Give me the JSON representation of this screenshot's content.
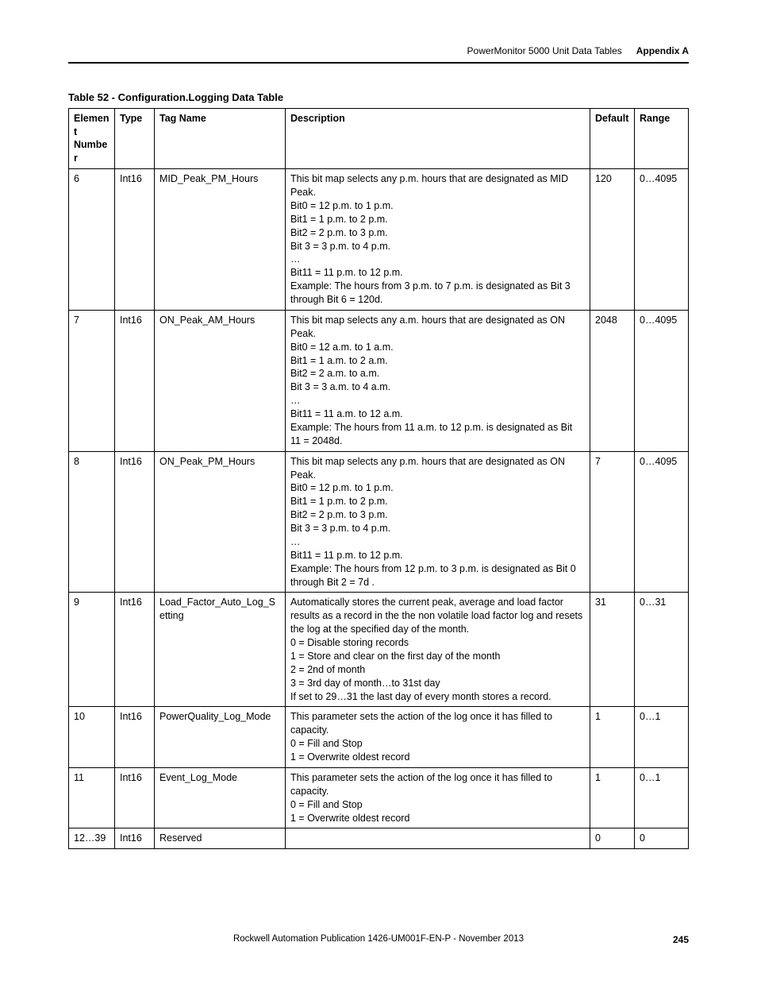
{
  "header": {
    "chapter": "PowerMonitor 5000 Unit Data Tables",
    "appendix": "Appendix A"
  },
  "caption": "Table 52 - Configuration.Logging Data Table",
  "columns": {
    "elem": "Element Number",
    "type": "Type",
    "tag": "Tag Name",
    "desc": "Description",
    "def": "Default",
    "range": "Range"
  },
  "rows": [
    {
      "elem": "6",
      "type": "Int16",
      "tag": "MID_Peak_PM_Hours",
      "desc": "This bit map selects any p.m. hours that are designated as MID Peak.\n  Bit0 = 12 p.m. to 1 p.m.\n  Bit1 = 1 p.m. to 2 p.m.\n  Bit2 = 2 p.m. to 3 p.m.\n  Bit 3 = 3 p.m. to 4 p.m.\n  …\n  Bit11 = 11 p.m. to 12 p.m.\n  Example: The hours from 3 p.m. to 7 p.m. is designated as Bit 3 through Bit 6 = 120d.",
      "def": "120",
      "range": "0…4095"
    },
    {
      "elem": "7",
      "elem_align": "right",
      "type": "Int16",
      "tag": "ON_Peak_AM_Hours",
      "desc": "This bit map selects any a.m. hours that are designated as ON Peak.\n  Bit0 = 12 a.m. to 1 a.m.\n  Bit1 = 1 a.m. to 2 a.m.\n  Bit2 = 2 a.m. to a.m.\n  Bit 3 = 3 a.m. to 4 a.m.\n  …\n  Bit11 = 11 a.m. to 12 a.m.\n  Example: The hours from 11 a.m. to 12 p.m. is designated as Bit 11  = 2048d.",
      "def": "2048",
      "range": "0…4095"
    },
    {
      "elem": "8",
      "type": "Int16",
      "tag": "ON_Peak_PM_Hours",
      "desc": "This bit map selects any p.m. hours that are designated as ON Peak.\n  Bit0 = 12 p.m. to 1 p.m.\n  Bit1 = 1 p.m. to 2 p.m.\n  Bit2 = 2 p.m. to 3 p.m.\n  Bit 3 = 3 p.m. to 4 p.m.\n  …\n  Bit11 = 11 p.m. to 12 p.m.\n  Example: The hours from 12 p.m. to 3 p.m. is designated as Bit 0 through Bit 2 = 7d .",
      "def": "7",
      "range": "0…4095"
    },
    {
      "elem": "9",
      "elem_align": "right",
      "type": "Int16",
      "tag": "Load_Factor_Auto_Log_Setting",
      "desc": "Automatically stores the current peak, average and load factor results as a record in the the non volatile load factor log and resets the log at the specified day of the month.\n0 = Disable storing records\n1 = Store and clear on the first day of the month\n2 = 2nd of month\n3 = 3rd day of month…to 31st day\nIf set to 29…31 the last day of every month stores a record.",
      "def": "31",
      "range": "0…31"
    },
    {
      "elem": "10",
      "type": "Int16",
      "tag": "PowerQuality_Log_Mode",
      "desc": "This parameter sets the action of the log once it has filled to capacity.\n0 = Fill and Stop\n1 = Overwrite oldest record",
      "def": "1",
      "range": "0…1"
    },
    {
      "elem": "11",
      "type": "Int16",
      "tag": "Event_Log_Mode",
      "desc": "This parameter sets the action of the log once it has filled to capacity.\n0 = Fill and Stop\n1 = Overwrite oldest record",
      "def": "1",
      "range": "0…1"
    },
    {
      "elem": "12…39",
      "type": "Int16",
      "tag": "Reserved",
      "desc": "",
      "def": "0",
      "range": "0"
    }
  ],
  "footer": {
    "publication": "Rockwell Automation Publication 1426-UM001F-EN-P - November 2013",
    "page": "245"
  }
}
